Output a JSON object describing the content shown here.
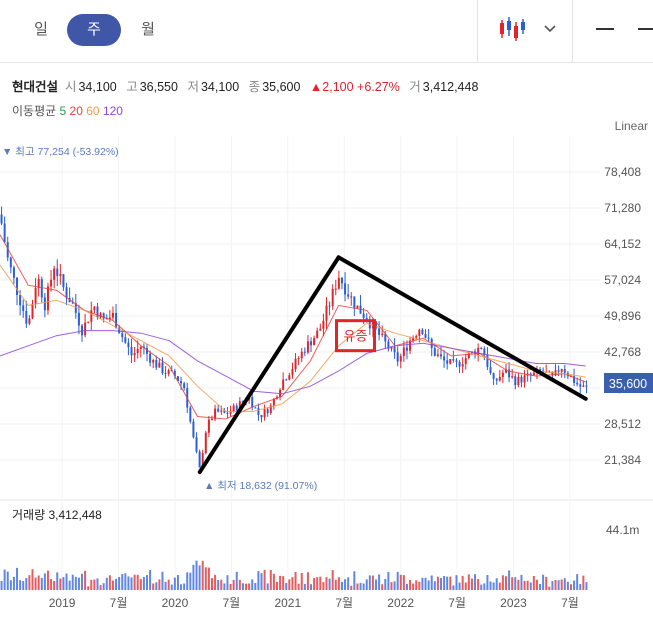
{
  "tabs": [
    {
      "label": "일",
      "active": false
    },
    {
      "label": "주",
      "active": true
    },
    {
      "label": "월",
      "active": false
    }
  ],
  "toolbar": {
    "chart_type_icon": "candlestick-icon",
    "dropdown_icon": "chevron-down-icon",
    "menu_icon": "dash-icon"
  },
  "stock": {
    "name": "현대건설",
    "open_label": "시",
    "open": "34,100",
    "high_label": "고",
    "high": "36,550",
    "low_label": "저",
    "low": "34,100",
    "close_label": "종",
    "close": "35,600",
    "change_arrow": "▲",
    "change": "2,100",
    "change_pct": "+6.27%",
    "volume_label": "거",
    "volume": "3,412,448"
  },
  "moving_average": {
    "label": "이동평균",
    "periods": [
      "5",
      "20",
      "60",
      "120"
    ],
    "colors": [
      "#2e9e4a",
      "#e8423b",
      "#f2994a",
      "#8e44d8"
    ]
  },
  "scale_mode": "Linear",
  "extremes": {
    "high_text": "▼ 최고 77,254 (-53.92%)",
    "low_text": "▲ 최저 18,632 (91.07%)"
  },
  "current_price_badge": "35,600",
  "volume_panel": {
    "title": "거래량 3,412,448",
    "max_label": "44.1m"
  },
  "annotation": {
    "text": "유증",
    "color": "#e0242a"
  },
  "colors": {
    "up": "#e0242a",
    "down": "#2b5fd9",
    "accent": "#3f57a6",
    "badge": "#3a5fae",
    "trendline": "#000000"
  },
  "chart_data": {
    "type": "candlestick",
    "title": "",
    "ylim": [
      14256,
      85536
    ],
    "y_ticks": [
      "78,408",
      "71,280",
      "64,152",
      "57,024",
      "49,896",
      "42,768",
      "35,640",
      "28,512",
      "21,384"
    ],
    "x_tick_labels": [
      "2019",
      "7월",
      "2020",
      "7월",
      "2021",
      "7월",
      "2022",
      "7월",
      "2023",
      "7월"
    ],
    "x_tick_times": [
      2019.0,
      2019.5,
      2020.0,
      2020.5,
      2021.0,
      2021.5,
      2022.0,
      2022.5,
      2023.0,
      2023.5
    ],
    "xlim": [
      2018.45,
      2023.66
    ],
    "price_path": [
      [
        2018.45,
        70000
      ],
      [
        2018.52,
        61000
      ],
      [
        2018.6,
        55000
      ],
      [
        2018.7,
        48000
      ],
      [
        2018.78,
        58000
      ],
      [
        2018.85,
        52000
      ],
      [
        2018.93,
        60000
      ],
      [
        2019.02,
        55000
      ],
      [
        2019.1,
        52000
      ],
      [
        2019.18,
        47000
      ],
      [
        2019.28,
        52000
      ],
      [
        2019.36,
        49000
      ],
      [
        2019.45,
        50000
      ],
      [
        2019.55,
        45000
      ],
      [
        2019.62,
        42000
      ],
      [
        2019.7,
        44000
      ],
      [
        2019.8,
        41000
      ],
      [
        2019.9,
        39000
      ],
      [
        2020.0,
        38000
      ],
      [
        2020.08,
        36000
      ],
      [
        2020.16,
        26000
      ],
      [
        2020.22,
        19500
      ],
      [
        2020.28,
        28000
      ],
      [
        2020.36,
        31000
      ],
      [
        2020.45,
        30500
      ],
      [
        2020.55,
        32000
      ],
      [
        2020.65,
        34000
      ],
      [
        2020.75,
        30000
      ],
      [
        2020.85,
        32000
      ],
      [
        2020.95,
        37000
      ],
      [
        2021.05,
        40000
      ],
      [
        2021.15,
        43500
      ],
      [
        2021.28,
        47000
      ],
      [
        2021.38,
        53000
      ],
      [
        2021.45,
        58000
      ],
      [
        2021.52,
        55000
      ],
      [
        2021.6,
        52000
      ],
      [
        2021.68,
        50000
      ],
      [
        2021.78,
        47000
      ],
      [
        2021.88,
        44000
      ],
      [
        2021.98,
        41000
      ],
      [
        2022.08,
        45000
      ],
      [
        2022.18,
        48000
      ],
      [
        2022.28,
        43000
      ],
      [
        2022.38,
        41000
      ],
      [
        2022.48,
        40000
      ],
      [
        2022.6,
        42000
      ],
      [
        2022.72,
        44000
      ],
      [
        2022.82,
        36500
      ],
      [
        2022.92,
        39000
      ],
      [
        2023.02,
        37000
      ],
      [
        2023.15,
        38000
      ],
      [
        2023.25,
        39000
      ],
      [
        2023.35,
        37500
      ],
      [
        2023.42,
        40000
      ],
      [
        2023.5,
        38000
      ],
      [
        2023.58,
        36000
      ],
      [
        2023.64,
        35600
      ]
    ],
    "moving_averages": [
      {
        "name": "20",
        "color": "#e8423b",
        "points": [
          [
            2018.45,
            66000
          ],
          [
            2018.7,
            56000
          ],
          [
            2018.95,
            55000
          ],
          [
            2019.2,
            51000
          ],
          [
            2019.45,
            49000
          ],
          [
            2019.7,
            44000
          ],
          [
            2019.95,
            40000
          ],
          [
            2020.2,
            30000
          ],
          [
            2020.45,
            29500
          ],
          [
            2020.7,
            32000
          ],
          [
            2020.95,
            34000
          ],
          [
            2021.2,
            41000
          ],
          [
            2021.45,
            52000
          ],
          [
            2021.7,
            51000
          ],
          [
            2021.95,
            44000
          ],
          [
            2022.2,
            45500
          ],
          [
            2022.45,
            42000
          ],
          [
            2022.7,
            42500
          ],
          [
            2022.95,
            39000
          ],
          [
            2023.2,
            38000
          ],
          [
            2023.45,
            38500
          ],
          [
            2023.64,
            36800
          ]
        ]
      },
      {
        "name": "60",
        "color": "#f2994a",
        "points": [
          [
            2018.45,
            60000
          ],
          [
            2018.7,
            52000
          ],
          [
            2018.95,
            53000
          ],
          [
            2019.2,
            51000
          ],
          [
            2019.45,
            48000
          ],
          [
            2019.7,
            45000
          ],
          [
            2019.95,
            42000
          ],
          [
            2020.2,
            36000
          ],
          [
            2020.45,
            31000
          ],
          [
            2020.7,
            31000
          ],
          [
            2020.95,
            32500
          ],
          [
            2021.2,
            37000
          ],
          [
            2021.45,
            44000
          ],
          [
            2021.7,
            48500
          ],
          [
            2021.95,
            46500
          ],
          [
            2022.2,
            45000
          ],
          [
            2022.45,
            43500
          ],
          [
            2022.7,
            42000
          ],
          [
            2022.95,
            40500
          ],
          [
            2023.2,
            39000
          ],
          [
            2023.45,
            38500
          ],
          [
            2023.64,
            37800
          ]
        ]
      },
      {
        "name": "120",
        "color": "#8e44d8",
        "points": [
          [
            2018.45,
            42000
          ],
          [
            2018.7,
            44000
          ],
          [
            2018.95,
            46000
          ],
          [
            2019.2,
            47000
          ],
          [
            2019.45,
            47000
          ],
          [
            2019.7,
            46500
          ],
          [
            2019.95,
            45000
          ],
          [
            2020.2,
            41000
          ],
          [
            2020.45,
            38000
          ],
          [
            2020.7,
            35000
          ],
          [
            2020.95,
            34500
          ],
          [
            2021.2,
            36000
          ],
          [
            2021.45,
            39000
          ],
          [
            2021.7,
            42500
          ],
          [
            2021.95,
            44000
          ],
          [
            2022.2,
            44500
          ],
          [
            2022.45,
            43500
          ],
          [
            2022.7,
            42500
          ],
          [
            2022.95,
            41500
          ],
          [
            2023.2,
            40500
          ],
          [
            2023.45,
            40500
          ],
          [
            2023.64,
            40000
          ]
        ]
      }
    ],
    "trendlines": [
      {
        "name": "rise",
        "points": [
          [
            2020.22,
            19000
          ],
          [
            2021.45,
            61500
          ]
        ]
      },
      {
        "name": "fall",
        "points": [
          [
            2021.45,
            61500
          ],
          [
            2023.64,
            33500
          ]
        ]
      }
    ],
    "annotation_point": [
      2021.6,
      46000
    ]
  }
}
